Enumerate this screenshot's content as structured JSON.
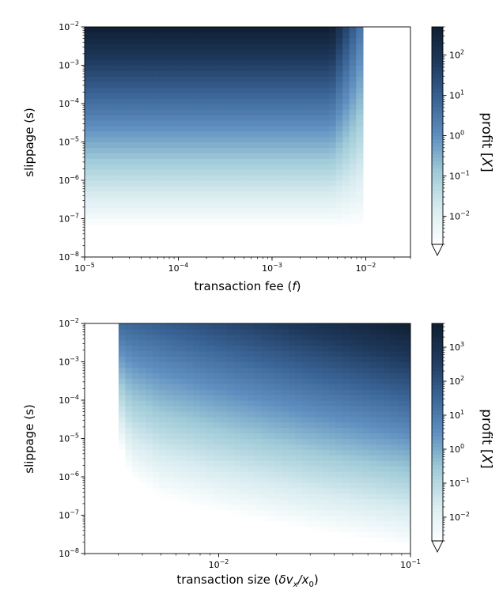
{
  "chart_data": [
    {
      "type": "heatmap",
      "xlabel": "transaction fee (",
      "xlabel_var": "f",
      "xlabel_tail": ")",
      "ylabel": "slippage (s)",
      "colorbar_label": "profit [",
      "colorbar_var": "X",
      "colorbar_tail": "]",
      "x_scale": "log",
      "y_scale": "log",
      "xlim": [
        1e-05,
        0.03
      ],
      "ylim": [
        1e-08,
        0.01
      ],
      "xticks": [
        {
          "value": 1e-05,
          "base": "10",
          "exp": "−5"
        },
        {
          "value": 0.0001,
          "base": "10",
          "exp": "−4"
        },
        {
          "value": 0.001,
          "base": "10",
          "exp": "−3"
        },
        {
          "value": 0.01,
          "base": "10",
          "exp": "−2"
        }
      ],
      "yticks": [
        {
          "value": 1e-08,
          "base": "10",
          "exp": "−8"
        },
        {
          "value": 1e-07,
          "base": "10",
          "exp": "−7"
        },
        {
          "value": 1e-06,
          "base": "10",
          "exp": "−6"
        },
        {
          "value": 1e-05,
          "base": "10",
          "exp": "−5"
        },
        {
          "value": 0.0001,
          "base": "10",
          "exp": "−4"
        },
        {
          "value": 0.001,
          "base": "10",
          "exp": "−3"
        },
        {
          "value": 0.01,
          "base": "10",
          "exp": "−2"
        }
      ],
      "colorbar_range": [
        0.002,
        500
      ],
      "colorbar_ticks": [
        {
          "value": 0.01,
          "base": "10",
          "exp": "−2"
        },
        {
          "value": 0.1,
          "base": "10",
          "exp": "−1"
        },
        {
          "value": 1,
          "base": "10",
          "exp": "0"
        },
        {
          "value": 10,
          "base": "10",
          "exp": "1"
        },
        {
          "value": 100,
          "base": "10",
          "exp": "2"
        }
      ],
      "colorbar_extend": "min",
      "colormap": [
        "#ffffff",
        "#d8ecf0",
        "#a0cbd8",
        "#5f8fc0",
        "#3a6496",
        "#1f3a5e",
        "#0f1f33"
      ],
      "region": {
        "fee_cutoff": 0.0095,
        "min_slippage": 6e-08,
        "max_slippage": 0.01
      }
    },
    {
      "type": "heatmap",
      "xlabel": "transaction size (",
      "xlabel_var": "δv",
      "xlabel_sub": "x",
      "xlabel_div": "/x",
      "xlabel_sub2": "0",
      "xlabel_tail": ")",
      "ylabel": "slippage (s)",
      "colorbar_label": "profit [",
      "colorbar_var": "X",
      "colorbar_tail": "]",
      "x_scale": "log",
      "y_scale": "log",
      "xlim": [
        0.002,
        0.1
      ],
      "ylim": [
        1e-08,
        0.01
      ],
      "xticks": [
        {
          "value": 0.01,
          "base": "10",
          "exp": "−2"
        },
        {
          "value": 0.1,
          "base": "10",
          "exp": "−1"
        }
      ],
      "yticks": [
        {
          "value": 1e-08,
          "base": "10",
          "exp": "−8"
        },
        {
          "value": 1e-07,
          "base": "10",
          "exp": "−7"
        },
        {
          "value": 1e-06,
          "base": "10",
          "exp": "−6"
        },
        {
          "value": 1e-05,
          "base": "10",
          "exp": "−5"
        },
        {
          "value": 0.0001,
          "base": "10",
          "exp": "−4"
        },
        {
          "value": 0.001,
          "base": "10",
          "exp": "−3"
        },
        {
          "value": 0.01,
          "base": "10",
          "exp": "−2"
        }
      ],
      "colorbar_range": [
        0.002,
        5000
      ],
      "colorbar_ticks": [
        {
          "value": 0.01,
          "base": "10",
          "exp": "−2"
        },
        {
          "value": 0.1,
          "base": "10",
          "exp": "−1"
        },
        {
          "value": 1,
          "base": "10",
          "exp": "0"
        },
        {
          "value": 10,
          "base": "10",
          "exp": "1"
        },
        {
          "value": 100,
          "base": "10",
          "exp": "2"
        },
        {
          "value": 1000,
          "base": "10",
          "exp": "3"
        }
      ],
      "colorbar_extend": "min",
      "colormap": [
        "#ffffff",
        "#d8ecf0",
        "#a0cbd8",
        "#5f8fc0",
        "#3a6496",
        "#1f3a5e",
        "#0f1f33"
      ],
      "region": {
        "size_cutoff": 0.0031,
        "boundary_slippage": [
          {
            "x": 0.0031,
            "s": 5e-06
          },
          {
            "x": 0.0035,
            "s": 1e-06
          },
          {
            "x": 0.005,
            "s": 3e-07
          },
          {
            "x": 0.01,
            "s": 1.2e-07
          },
          {
            "x": 0.03,
            "s": 4e-08
          },
          {
            "x": 0.1,
            "s": 1.5e-08
          }
        ],
        "max_slippage": 0.01
      }
    }
  ]
}
